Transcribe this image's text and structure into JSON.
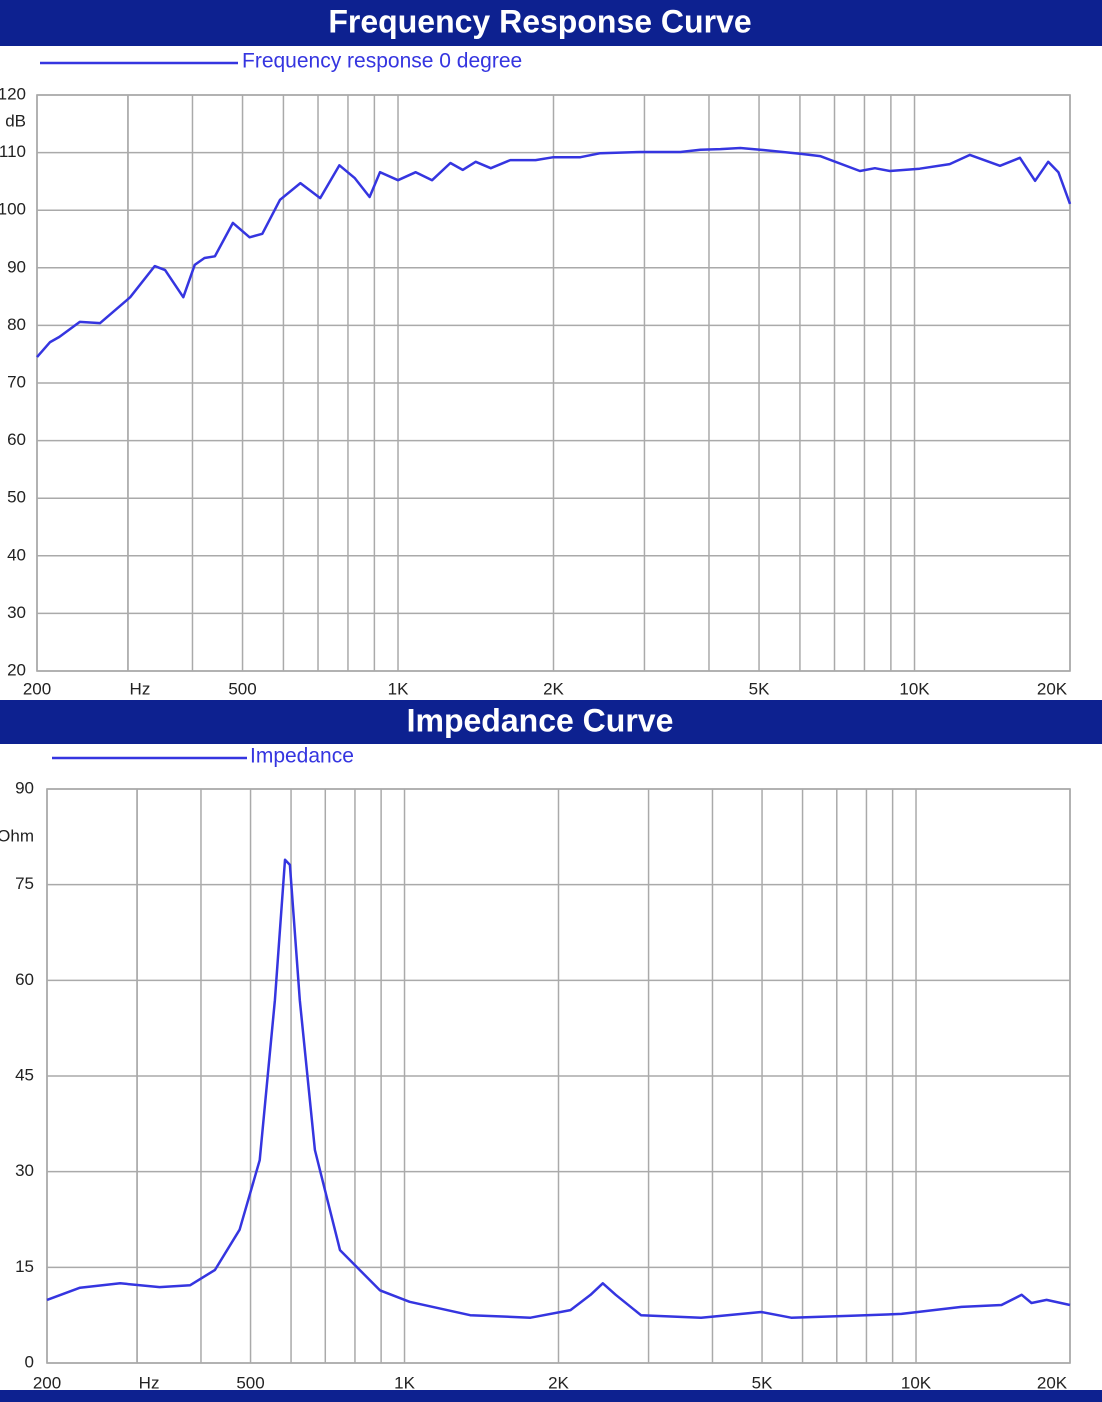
{
  "chart_data": [
    {
      "type": "line",
      "title": "Frequency Response Curve",
      "y_label": "dB",
      "xscale": "log",
      "x": [
        200,
        212,
        221,
        242,
        265,
        303,
        338,
        354,
        384,
        404,
        422,
        442,
        479,
        516,
        546,
        591,
        647,
        707,
        770,
        824,
        881,
        923,
        1000,
        1082,
        1164,
        1263,
        1334,
        1414,
        1512,
        1650,
        1847,
        2000,
        2255,
        2465,
        2947,
        3521,
        3850,
        4208,
        4600,
        5025,
        6005,
        6563,
        7838,
        8380,
        8960,
        10230,
        11700,
        12800,
        14640,
        16000,
        17120,
        18150,
        18990,
        20000
      ],
      "series": [
        {
          "name": "Frequency response 0 degree",
          "color": "#3535e0",
          "values": [
            74.5,
            77.1,
            78,
            80.6,
            80.4,
            84.9,
            90.3,
            89.6,
            84.9,
            90.5,
            91.7,
            92,
            97.8,
            95.3,
            95.9,
            101.8,
            104.7,
            102.1,
            107.8,
            105.6,
            102.3,
            106.6,
            105.2,
            106.6,
            105.2,
            108.2,
            107,
            108.4,
            107.3,
            108.7,
            108.7,
            109.2,
            109.2,
            109.9,
            110.1,
            110.1,
            110.5,
            110.6,
            110.8,
            110.5,
            109.8,
            109.4,
            106.8,
            107.3,
            106.8,
            107.2,
            108,
            109.6,
            107.7,
            109.1,
            105.1,
            108.4,
            106.6,
            101.1
          ]
        }
      ],
      "xlim": [
        200,
        20000
      ],
      "xticks": [
        200,
        {
          "value": 300,
          "label": "Hz"
        },
        500,
        {
          "value": 1000,
          "label": "1K"
        },
        {
          "value": 2000,
          "label": "2K"
        },
        {
          "value": 5000,
          "label": "5K"
        },
        {
          "value": 10000,
          "label": "10K"
        },
        {
          "value": 20000,
          "label": "20K"
        }
      ],
      "xgrid_minor": [
        300,
        400,
        600,
        700,
        800,
        900,
        3000,
        4000,
        6000,
        7000,
        8000,
        9000
      ],
      "ylim": [
        20,
        120
      ],
      "yticks": [
        20,
        30,
        40,
        50,
        60,
        70,
        80,
        90,
        100,
        110,
        120
      ],
      "grid": true
    },
    {
      "type": "line",
      "title": "Impedance Curve",
      "y_label": "Ohm",
      "xscale": "log",
      "x": [
        200,
        232,
        278,
        332,
        381,
        426,
        476,
        521,
        558,
        584,
        597,
        624,
        668,
        748,
        895,
        1023,
        1344,
        1763,
        2111,
        2311,
        2441,
        2587,
        2899,
        3801,
        4982,
        5702,
        7472,
        9366,
        12270,
        14690,
        16090,
        16820,
        18000,
        20000
      ],
      "series": [
        {
          "name": "Impedance",
          "color": "#3535e0",
          "values": [
            9.9,
            11.8,
            12.5,
            11.9,
            12.2,
            14.6,
            20.9,
            31.8,
            56.9,
            78.9,
            78.1,
            56.9,
            33.4,
            17.7,
            11.4,
            9.6,
            7.5,
            7.1,
            8.3,
            10.7,
            12.5,
            10.7,
            7.5,
            7.1,
            8,
            7.1,
            7.4,
            7.7,
            8.8,
            9.1,
            10.7,
            9.4,
            9.9,
            9.1
          ]
        }
      ],
      "xlim": [
        200,
        20000
      ],
      "xticks": [
        200,
        {
          "value": 300,
          "label": "Hz"
        },
        500,
        {
          "value": 1000,
          "label": "1K"
        },
        {
          "value": 2000,
          "label": "2K"
        },
        {
          "value": 5000,
          "label": "5K"
        },
        {
          "value": 10000,
          "label": "10K"
        },
        {
          "value": 20000,
          "label": "20K"
        }
      ],
      "xgrid_minor": [
        300,
        400,
        600,
        700,
        800,
        900,
        3000,
        4000,
        6000,
        7000,
        8000,
        9000
      ],
      "ylim": [
        0,
        90
      ],
      "yticks": [
        0,
        15,
        30,
        45,
        60,
        75,
        90
      ],
      "grid": true
    }
  ]
}
